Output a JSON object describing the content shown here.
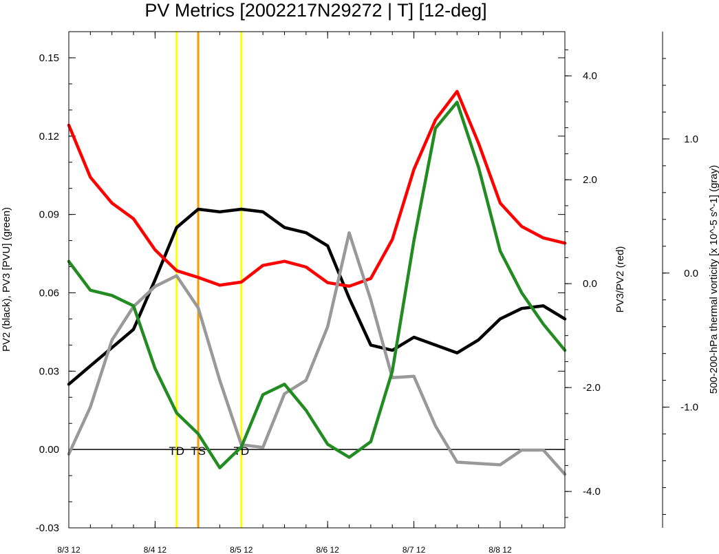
{
  "chart_data": {
    "type": "line",
    "title": "PV Metrics [2002217N29272 | T] [12-deg]",
    "x_tick_labels": [
      "8/3 12",
      "8/4 12",
      "8/5 12",
      "8/6 12",
      "8/7 12",
      "8/8 12"
    ],
    "x": [
      0,
      0.25,
      0.5,
      0.75,
      1,
      1.25,
      1.5,
      1.75,
      2,
      2.25,
      2.5,
      2.75,
      3,
      3.25,
      3.5,
      3.75,
      4,
      4.25,
      4.5,
      4.75,
      5,
      5.25,
      5.5,
      5.75
    ],
    "xlim": [
      0,
      5.75
    ],
    "axes": {
      "left": {
        "label": "PV2 (black), PV3 [PVU] (green)",
        "ylim": [
          -0.03,
          0.16
        ],
        "ticks": [
          -0.03,
          0.0,
          0.03,
          0.06,
          0.09,
          0.12,
          0.15
        ],
        "tick_labels": [
          "-0.03",
          "0.00",
          "0.03",
          "0.06",
          "0.09",
          "0.12",
          "0.15"
        ]
      },
      "right1": {
        "label": "PV3/PV2 (red)",
        "ylim": [
          -4.7,
          4.85
        ],
        "ticks": [
          -4,
          -2,
          0,
          2,
          4
        ],
        "tick_labels": [
          "-4.0",
          "-2.0",
          "0.0",
          "2.0",
          "4.0"
        ]
      },
      "right2": {
        "label": "500-200-hPa thermal vorticity [x 10^-5 s^-1] (gray)",
        "ylim": [
          -1.9,
          1.8
        ],
        "ticks": [
          -1.0,
          0.0,
          1.0
        ],
        "tick_labels": [
          "-1.0",
          "0.0",
          "1.0"
        ]
      }
    },
    "series": [
      {
        "axis": "left",
        "color": "#000000",
        "values": [
          0.025,
          0.032,
          0.039,
          0.046,
          0.065,
          0.085,
          0.092,
          0.091,
          0.092,
          0.091,
          0.085,
          0.083,
          0.078,
          0.058,
          0.04,
          0.038,
          0.043,
          0.04,
          0.037,
          0.042,
          0.05,
          0.054,
          0.055,
          0.05
        ]
      },
      {
        "axis": "left",
        "color": "#228b22",
        "values": [
          0.072,
          0.061,
          0.059,
          0.055,
          0.031,
          0.014,
          0.006,
          -0.007,
          0.001,
          0.021,
          0.025,
          0.015,
          0.002,
          -0.003,
          0.003,
          0.03,
          0.08,
          0.123,
          0.133,
          0.108,
          0.076,
          0.06,
          0.048,
          0.038
        ]
      },
      {
        "axis": "right1",
        "color": "#ff0000",
        "values": [
          3.05,
          2.05,
          1.55,
          1.25,
          0.65,
          0.25,
          0.12,
          -0.03,
          0.03,
          0.35,
          0.43,
          0.32,
          0.02,
          -0.05,
          0.1,
          0.85,
          2.2,
          3.15,
          3.7,
          2.7,
          1.55,
          1.1,
          0.88,
          0.78
        ]
      },
      {
        "axis": "right2",
        "color": "#999999",
        "values": [
          -1.35,
          -1.0,
          -0.5,
          -0.25,
          -0.1,
          -0.02,
          -0.26,
          -0.8,
          -1.28,
          -1.3,
          -0.9,
          -0.8,
          -0.4,
          0.3,
          -0.2,
          -0.78,
          -0.77,
          -1.14,
          -1.41,
          -1.42,
          -1.43,
          -1.32,
          -1.32,
          -1.5
        ]
      }
    ],
    "reference_line": {
      "axis": "left",
      "y": 0.0,
      "color": "#000000"
    },
    "vertical_markers": [
      {
        "x": 1.25,
        "color": "#ffff00",
        "label": "TD"
      },
      {
        "x": 1.5,
        "color": "#ff9900",
        "label": "TS"
      },
      {
        "x": 2.0,
        "color": "#ffff00",
        "label": "TD"
      }
    ]
  }
}
